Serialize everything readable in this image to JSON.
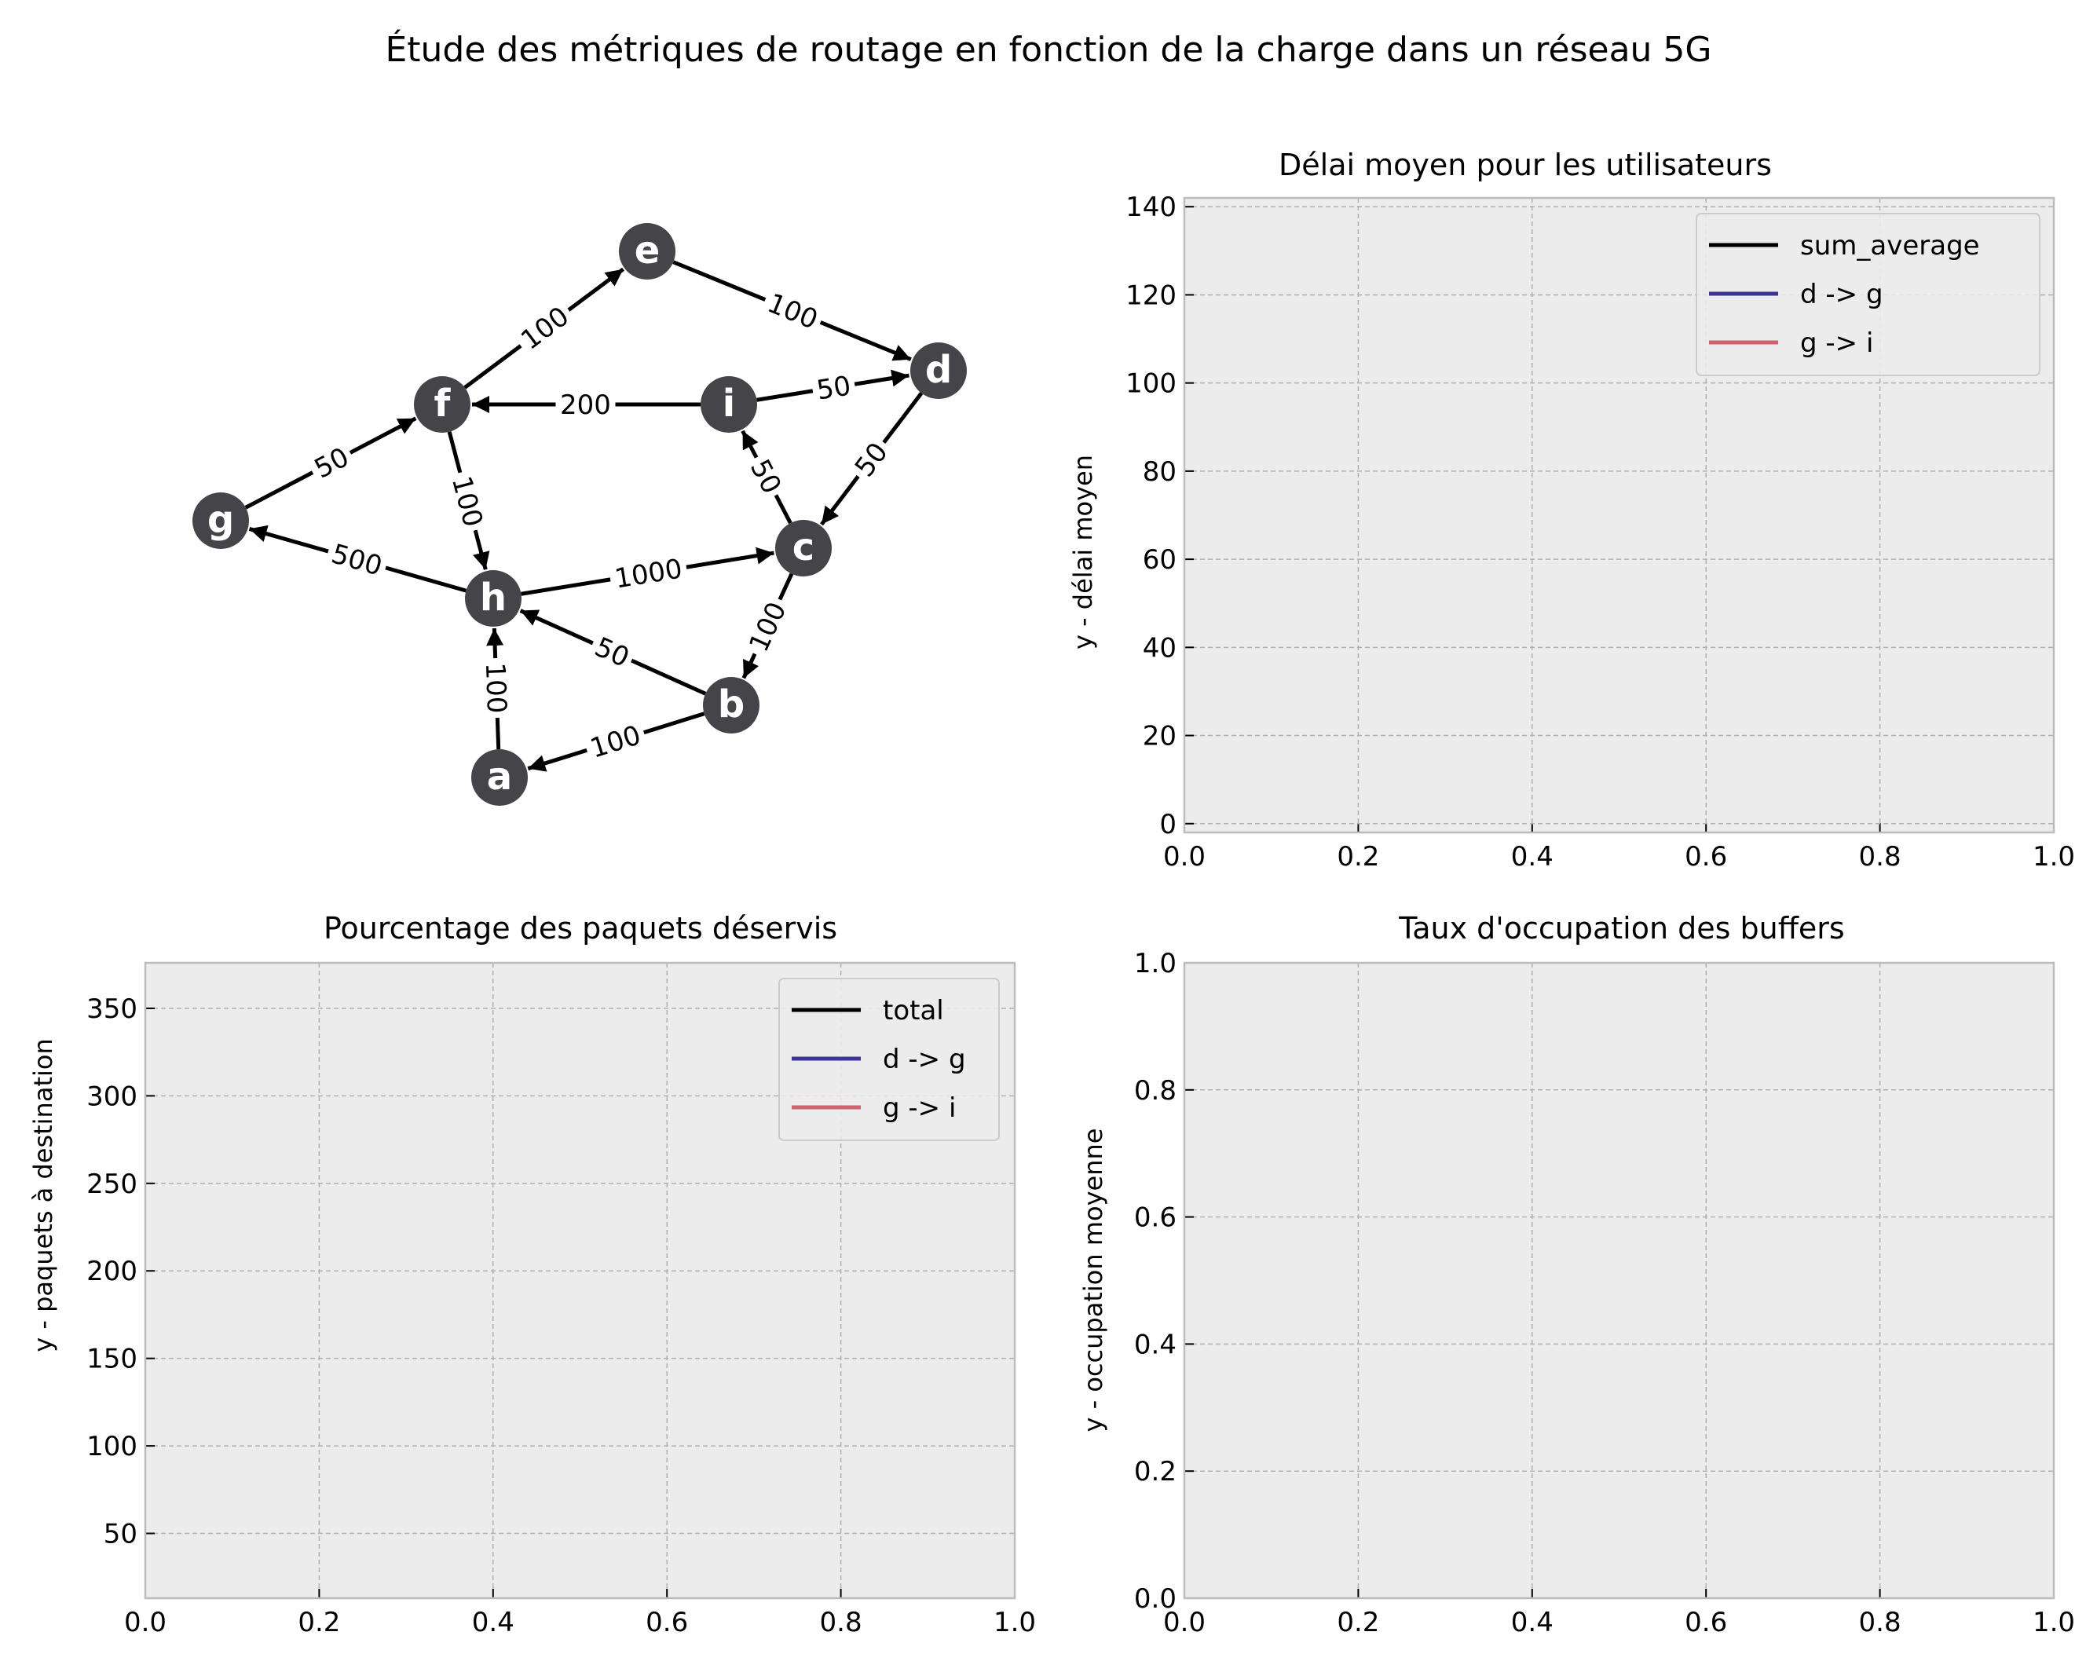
{
  "figure_title": "Étude des métriques de routage en fonction de la charge dans un réseau 5G",
  "colors": {
    "axes_bg": "#ececec",
    "grid": "#b0b0b0",
    "spine": "#bcbcbc",
    "node": "#444449",
    "edge": "#000000",
    "series_black": "#000000",
    "series_blue": "#3c3498",
    "series_red": "#d0616e"
  },
  "chart_data": [
    {
      "type": "network",
      "nodes": [
        "a",
        "b",
        "c",
        "d",
        "e",
        "f",
        "g",
        "h",
        "i"
      ],
      "edges": [
        {
          "from": "f",
          "to": "e",
          "weight": "100"
        },
        {
          "from": "e",
          "to": "d",
          "weight": "100"
        },
        {
          "from": "i",
          "to": "f",
          "weight": "200"
        },
        {
          "from": "i",
          "to": "d",
          "weight": "50"
        },
        {
          "from": "g",
          "to": "f",
          "weight": "50"
        },
        {
          "from": "f",
          "to": "h",
          "weight": "100"
        },
        {
          "from": "d",
          "to": "c",
          "weight": "50"
        },
        {
          "from": "c",
          "to": "i",
          "weight": "50"
        },
        {
          "from": "h",
          "to": "g",
          "weight": "500"
        },
        {
          "from": "h",
          "to": "c",
          "weight": "1000"
        },
        {
          "from": "c",
          "to": "b",
          "weight": "100"
        },
        {
          "from": "b",
          "to": "h",
          "weight": "50"
        },
        {
          "from": "a",
          "to": "h",
          "weight": "100"
        },
        {
          "from": "b",
          "to": "a",
          "weight": "100"
        }
      ]
    },
    {
      "type": "line",
      "title": "Délai moyen pour les utilisateurs",
      "xlabel": "",
      "ylabel": "y - délai moyen",
      "xlim": [
        0,
        1
      ],
      "ylim": [
        -2,
        142
      ],
      "xticks": [
        "0.0",
        "0.2",
        "0.4",
        "0.6",
        "0.8",
        "1.0"
      ],
      "yticks": [
        "0",
        "20",
        "40",
        "60",
        "80",
        "100",
        "120",
        "140"
      ],
      "grid": true,
      "legend_position": "upper right",
      "series": [
        {
          "name": "sum_average",
          "values": []
        },
        {
          "name": "d -> g",
          "values": []
        },
        {
          "name": "g -> i",
          "values": []
        }
      ]
    },
    {
      "type": "line",
      "title": "Pourcentage des paquets déservis",
      "xlabel": "",
      "ylabel": "y - paquets à destination",
      "xlim": [
        0,
        1
      ],
      "ylim": [
        13,
        376
      ],
      "xticks": [
        "0.0",
        "0.2",
        "0.4",
        "0.6",
        "0.8",
        "1.0"
      ],
      "yticks": [
        "50",
        "100",
        "150",
        "200",
        "250",
        "300",
        "350"
      ],
      "grid": true,
      "legend_position": "upper right",
      "series": [
        {
          "name": "total",
          "values": []
        },
        {
          "name": "d -> g",
          "values": []
        },
        {
          "name": "g -> i",
          "values": []
        }
      ]
    },
    {
      "type": "line",
      "title": "Taux d'occupation des buffers",
      "xlabel": "",
      "ylabel": "y - occupation moyenne",
      "xlim": [
        0,
        1
      ],
      "ylim": [
        0,
        1
      ],
      "xticks": [
        "0.0",
        "0.2",
        "0.4",
        "0.6",
        "0.8",
        "1.0"
      ],
      "yticks": [
        "0.0",
        "0.2",
        "0.4",
        "0.6",
        "0.8",
        "1.0"
      ],
      "grid": true,
      "series": []
    }
  ]
}
